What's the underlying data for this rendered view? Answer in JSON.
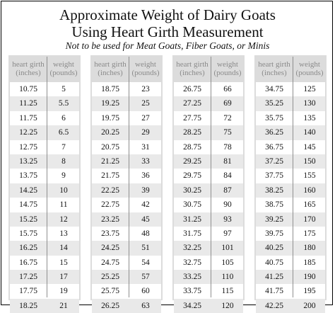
{
  "title_line1": "Approximate Weight of Dairy Goats",
  "title_line2": "Using Heart Girth Measurement",
  "subtitle": "Not to be used for Meat Goats, Fiber Goats, or Minis",
  "header": {
    "girth": "heart girth (inches)",
    "weight": "weight (pounds)"
  },
  "panels": [
    {
      "rows": [
        {
          "girth": "10.75",
          "weight": "5"
        },
        {
          "girth": "11.25",
          "weight": "5.5"
        },
        {
          "girth": "11.75",
          "weight": "6"
        },
        {
          "girth": "12.25",
          "weight": "6.5"
        },
        {
          "girth": "12.75",
          "weight": "7"
        },
        {
          "girth": "13.25",
          "weight": "8"
        },
        {
          "girth": "13.75",
          "weight": "9"
        },
        {
          "girth": "14.25",
          "weight": "10"
        },
        {
          "girth": "14.75",
          "weight": "11"
        },
        {
          "girth": "15.25",
          "weight": "12"
        },
        {
          "girth": "15.75",
          "weight": "13"
        },
        {
          "girth": "16.25",
          "weight": "14"
        },
        {
          "girth": "16.75",
          "weight": "15"
        },
        {
          "girth": "17.25",
          "weight": "17"
        },
        {
          "girth": "17.75",
          "weight": "19"
        },
        {
          "girth": "18.25",
          "weight": "21"
        }
      ]
    },
    {
      "rows": [
        {
          "girth": "18.75",
          "weight": "23"
        },
        {
          "girth": "19.25",
          "weight": "25"
        },
        {
          "girth": "19.75",
          "weight": "27"
        },
        {
          "girth": "20.25",
          "weight": "29"
        },
        {
          "girth": "20.75",
          "weight": "31"
        },
        {
          "girth": "21.25",
          "weight": "33"
        },
        {
          "girth": "21.75",
          "weight": "36"
        },
        {
          "girth": "22.25",
          "weight": "39"
        },
        {
          "girth": "22.75",
          "weight": "42"
        },
        {
          "girth": "23.25",
          "weight": "45"
        },
        {
          "girth": "23.75",
          "weight": "48"
        },
        {
          "girth": "24.25",
          "weight": "51"
        },
        {
          "girth": "24.75",
          "weight": "54"
        },
        {
          "girth": "25.25",
          "weight": "57"
        },
        {
          "girth": "25.75",
          "weight": "60"
        },
        {
          "girth": "26.25",
          "weight": "63"
        }
      ]
    },
    {
      "rows": [
        {
          "girth": "26.75",
          "weight": "66"
        },
        {
          "girth": "27.25",
          "weight": "69"
        },
        {
          "girth": "27.75",
          "weight": "72"
        },
        {
          "girth": "28.25",
          "weight": "75"
        },
        {
          "girth": "28.75",
          "weight": "78"
        },
        {
          "girth": "29.25",
          "weight": "81"
        },
        {
          "girth": "29.75",
          "weight": "84"
        },
        {
          "girth": "30.25",
          "weight": "87"
        },
        {
          "girth": "30.75",
          "weight": "90"
        },
        {
          "girth": "31.25",
          "weight": "93"
        },
        {
          "girth": "31.75",
          "weight": "97"
        },
        {
          "girth": "32.25",
          "weight": "101"
        },
        {
          "girth": "32.75",
          "weight": "105"
        },
        {
          "girth": "33.25",
          "weight": "110"
        },
        {
          "girth": "33.75",
          "weight": "115"
        },
        {
          "girth": "34.25",
          "weight": "120"
        }
      ]
    },
    {
      "rows": [
        {
          "girth": "34.75",
          "weight": "125"
        },
        {
          "girth": "35.25",
          "weight": "130"
        },
        {
          "girth": "35.75",
          "weight": "135"
        },
        {
          "girth": "36.25",
          "weight": "140"
        },
        {
          "girth": "36.75",
          "weight": "145"
        },
        {
          "girth": "37.25",
          "weight": "150"
        },
        {
          "girth": "37.75",
          "weight": "155"
        },
        {
          "girth": "38.25",
          "weight": "160"
        },
        {
          "girth": "38.75",
          "weight": "165"
        },
        {
          "girth": "39.25",
          "weight": "170"
        },
        {
          "girth": "39.75",
          "weight": "175"
        },
        {
          "girth": "40.25",
          "weight": "180"
        },
        {
          "girth": "40.75",
          "weight": "185"
        },
        {
          "girth": "41.25",
          "weight": "190"
        },
        {
          "girth": "41.75",
          "weight": "195"
        },
        {
          "girth": "42.25",
          "weight": "200"
        }
      ]
    }
  ]
}
